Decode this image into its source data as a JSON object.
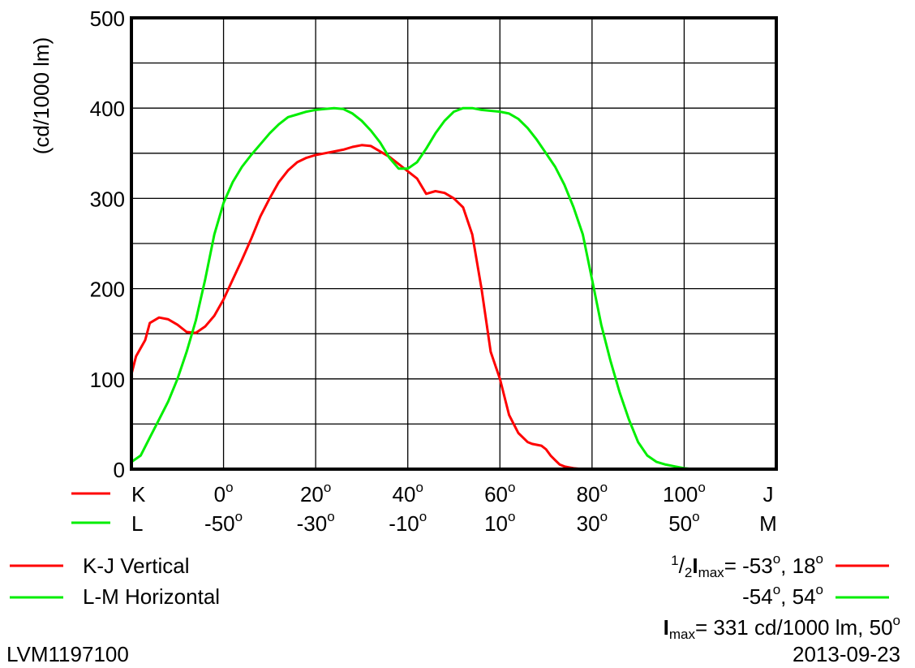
{
  "chart_data": {
    "type": "line",
    "ylabel": "(cd/1000 lm)",
    "ylim": [
      0,
      500
    ],
    "yticks": [
      "0",
      "100",
      "200",
      "300",
      "400",
      "500"
    ],
    "grid": true,
    "x_axes": [
      {
        "end_left": "K",
        "end_right": "J",
        "line_color": "#ff0000",
        "ticks": [
          "0",
          "20",
          "40",
          "60",
          "80",
          "100"
        ]
      },
      {
        "end_left": "L",
        "end_right": "M",
        "line_color": "#00ee00",
        "ticks": [
          "-50",
          "-30",
          "-10",
          "10",
          "30",
          "50"
        ]
      }
    ],
    "degree_symbol": "o",
    "x_range": [
      -20,
      120
    ],
    "series": [
      {
        "name": "K-J Vertical",
        "color": "#ff0000",
        "x": [
          -20,
          -19,
          -17,
          -16,
          -14,
          -12,
          -10,
          -8,
          -6,
          -4,
          -2,
          0,
          2,
          4,
          6,
          8,
          10,
          12,
          14,
          16,
          18,
          20,
          22,
          24,
          26,
          28,
          30,
          32,
          34,
          36,
          38,
          40,
          42,
          44,
          46,
          48,
          50,
          52,
          54,
          56,
          58,
          60,
          62,
          64,
          66,
          67,
          68,
          69,
          70,
          71,
          72,
          73,
          74,
          75,
          76,
          78,
          80,
          84,
          88,
          92,
          100,
          110,
          120
        ],
        "y": [
          105,
          125,
          143,
          162,
          168,
          166,
          160,
          152,
          151,
          158,
          170,
          188,
          210,
          232,
          255,
          280,
          300,
          318,
          331,
          340,
          345,
          348,
          350,
          352,
          354,
          357,
          359,
          358,
          352,
          346,
          338,
          330,
          322,
          305,
          308,
          306,
          300,
          290,
          260,
          200,
          130,
          100,
          60,
          40,
          30,
          28,
          27,
          26,
          22,
          15,
          10,
          5,
          3,
          2,
          1,
          0,
          0,
          0,
          0,
          0,
          0,
          0,
          0
        ]
      },
      {
        "name": "L-M Horizontal",
        "color": "#00ee00",
        "x": [
          -20,
          -18,
          -16,
          -14,
          -12,
          -10,
          -8,
          -6,
          -4,
          -2,
          0,
          2,
          4,
          6,
          8,
          10,
          12,
          14,
          16,
          18,
          20,
          22,
          24,
          26,
          28,
          30,
          32,
          34,
          36,
          38,
          40,
          42,
          44,
          46,
          48,
          50,
          52,
          54,
          56,
          58,
          60,
          62,
          64,
          66,
          68,
          70,
          72,
          74,
          76,
          78,
          80,
          82,
          84,
          86,
          88,
          90,
          92,
          94,
          96,
          98,
          100,
          102,
          104,
          106,
          108,
          110,
          112,
          114,
          116,
          118,
          120
        ],
        "y": [
          8,
          15,
          35,
          55,
          75,
          100,
          130,
          165,
          210,
          260,
          295,
          318,
          335,
          348,
          360,
          372,
          382,
          390,
          393,
          396,
          398,
          399,
          400,
          399,
          394,
          386,
          375,
          362,
          345,
          333,
          333,
          340,
          355,
          372,
          386,
          396,
          400,
          400,
          398,
          397,
          396,
          394,
          388,
          378,
          365,
          350,
          335,
          315,
          290,
          260,
          210,
          160,
          120,
          85,
          55,
          30,
          15,
          8,
          5,
          3,
          1,
          0,
          0,
          0,
          0,
          0,
          0,
          0,
          0,
          0,
          0
        ]
      }
    ]
  },
  "legend": {
    "series1_label": "K-J Vertical",
    "series2_label": "L-M Horizontal"
  },
  "stats": {
    "half_prefix_sup": "1",
    "half_prefix_sub": "2",
    "half_label": "I",
    "half_label_sub": "max",
    "half_row1_text": "= -53",
    "half_row1_b": ",   18",
    "half_row2_a": "-54",
    "half_row2_b": ",   54",
    "deg": "o",
    "imax_label": "I",
    "imax_sub": "max",
    "imax_text": "= 331 cd/1000 lm, 50"
  },
  "footer": {
    "id": "LVM1197100",
    "date": "2013-09-23"
  }
}
